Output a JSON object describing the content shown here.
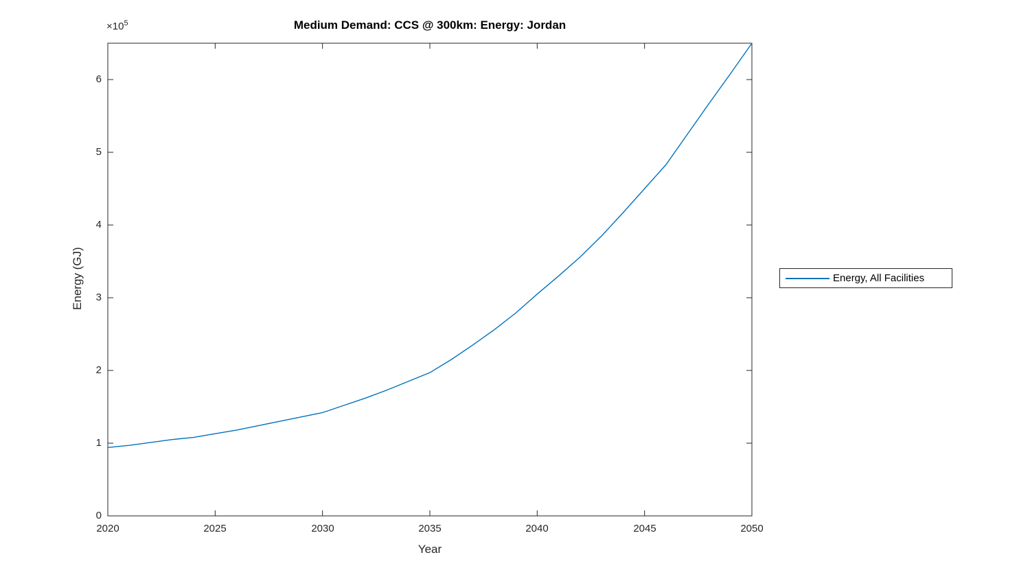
{
  "title": "Medium Demand: CCS @ 300km: Energy: Jordan",
  "axes": {
    "xlabel": "Year",
    "ylabel": "Energy (GJ)",
    "y_multiplier_base": "×10",
    "y_multiplier_exp": "5",
    "xtick_labels": [
      "2020",
      "2025",
      "2030",
      "2035",
      "2040",
      "2045",
      "2050"
    ],
    "ytick_labels": [
      "0",
      "1",
      "2",
      "3",
      "4",
      "5",
      "6"
    ]
  },
  "legend": {
    "entries": [
      {
        "label": "Energy, All Facilities",
        "color": "#0072BD"
      }
    ]
  },
  "colors": {
    "line": "#0072BD",
    "axis": "#262626",
    "background": "#ffffff"
  },
  "chart_data": {
    "type": "line",
    "title": "Medium Demand: CCS @ 300km: Energy: Jordan",
    "xlabel": "Year",
    "ylabel": "Energy (GJ)",
    "xlim": [
      2020,
      2050
    ],
    "ylim": [
      0,
      650000
    ],
    "xticks": [
      2020,
      2025,
      2030,
      2035,
      2040,
      2045,
      2050
    ],
    "yticks": [
      0,
      100000,
      200000,
      300000,
      400000,
      500000,
      600000
    ],
    "grid": false,
    "legend_position": "outside-right",
    "x": [
      2020,
      2021,
      2022,
      2023,
      2024,
      2025,
      2026,
      2027,
      2028,
      2029,
      2030,
      2031,
      2032,
      2033,
      2034,
      2035,
      2036,
      2037,
      2038,
      2039,
      2040,
      2041,
      2042,
      2043,
      2044,
      2045,
      2046,
      2047,
      2048,
      2049,
      2050
    ],
    "series": [
      {
        "name": "Energy, All Facilities",
        "color": "#0072BD",
        "values": [
          94000,
          97000,
          101000,
          105000,
          108000,
          113000,
          118000,
          124000,
          130000,
          136000,
          142000,
          152000,
          162000,
          173000,
          185000,
          197000,
          215000,
          235000,
          256000,
          279000,
          305000,
          330000,
          356000,
          385000,
          417000,
          450000,
          483000,
          525000,
          567000,
          608000,
          650000
        ]
      }
    ]
  }
}
